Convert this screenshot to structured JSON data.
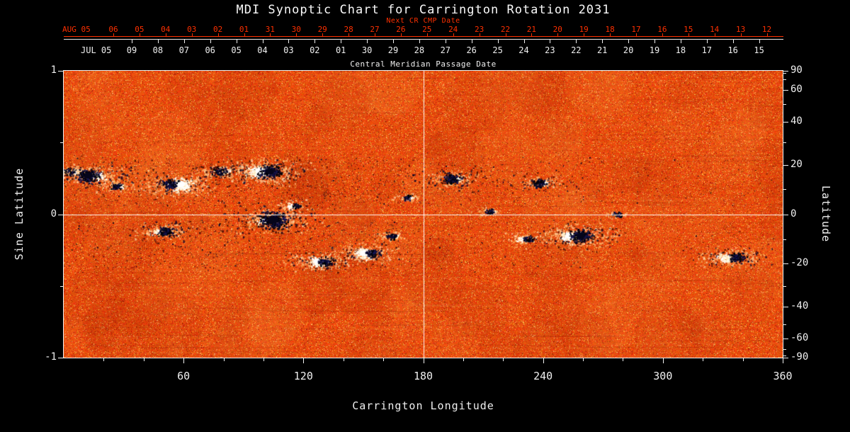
{
  "chart_data": {
    "type": "heatmap",
    "title": "MDI Synoptic Chart for Carrington Rotation 2031",
    "xlabel": "Carrington Longitude",
    "ylabel_left": "Sine Latitude",
    "ylabel_right": "Latitude",
    "xlim": [
      0,
      360
    ],
    "ylim_sine_latitude": [
      -1,
      1
    ],
    "x_major_ticks": [
      60,
      120,
      180,
      240,
      300,
      360
    ],
    "x_minor_step": 20,
    "left_ticks": [
      {
        "v": 1,
        "label": "1"
      },
      {
        "v": 0,
        "label": "0"
      },
      {
        "v": -1,
        "label": "-1"
      }
    ],
    "left_minor_ticks": [
      0.5,
      -0.5
    ],
    "right_major_ticks": [
      90,
      60,
      40,
      20,
      0,
      -20,
      -40,
      -60,
      -90
    ],
    "right_minor_ticks": [
      80,
      70,
      50,
      30,
      10,
      -10,
      -30,
      -50,
      -70,
      -80
    ],
    "grid": {
      "horizontal_at_sine_lat": 0,
      "vertical_at_longitude": 180
    },
    "top_axes": {
      "next_cr_label": "Next CR CMP Date",
      "red_prefix": "AUG 05",
      "red_dates": [
        "06",
        "05",
        "04",
        "03",
        "02",
        "01",
        "31",
        "30",
        "29",
        "28",
        "27",
        "26",
        "25",
        "24",
        "23",
        "22",
        "21",
        "20",
        "19",
        "18",
        "17",
        "16",
        "15",
        "14",
        "13",
        "12"
      ],
      "white_prefix": "JUL 05",
      "white_dates": [
        "09",
        "08",
        "07",
        "06",
        "05",
        "04",
        "03",
        "02",
        "01",
        "30",
        "29",
        "28",
        "27",
        "26",
        "25",
        "24",
        "23",
        "22",
        "21",
        "20",
        "19",
        "18",
        "17",
        "16",
        "15"
      ],
      "axis_title": "Central Meridian Passage Date"
    },
    "colors": {
      "background": "#000000",
      "red_axis": "#ff3000",
      "white_axis": "#f0f0f0",
      "base_orange": "#e85010",
      "bright_speckle": "#ffcf96",
      "dark_spot": "#0a0a30",
      "white_spot": "#ffffff"
    },
    "active_regions": [
      {
        "lon": 4,
        "sine_lat": 0.3,
        "dark": 7,
        "white": 5,
        "ddx": -4,
        "wdx": 5
      },
      {
        "lon": 14,
        "sine_lat": 0.27,
        "dark": 12,
        "white": 7,
        "ddx": -5,
        "wdx": 8
      },
      {
        "lon": 26,
        "sine_lat": 0.2,
        "dark": 6,
        "white": 4,
        "ddx": 0,
        "wdx": 6
      },
      {
        "lon": 50,
        "sine_lat": -0.12,
        "dark": 9,
        "white": 5,
        "ddx": 2,
        "wdx": -9
      },
      {
        "lon": 57,
        "sine_lat": 0.21,
        "dark": 9,
        "white": 12,
        "ddx": -11,
        "wdx": 4
      },
      {
        "lon": 78,
        "sine_lat": 0.3,
        "dark": 8,
        "white": 4,
        "ddx": 0,
        "wdx": 9
      },
      {
        "lon": 100,
        "sine_lat": 0.3,
        "dark": 12,
        "white": 12,
        "ddx": 9,
        "wdx": -5
      },
      {
        "lon": 104,
        "sine_lat": -0.04,
        "dark": 15,
        "white": 6,
        "ddx": 2,
        "wdx": -13
      },
      {
        "lon": 115,
        "sine_lat": 0.06,
        "dark": 5,
        "white": 5,
        "ddx": 4,
        "wdx": -4
      },
      {
        "lon": 128,
        "sine_lat": -0.33,
        "dark": 8,
        "white": 9,
        "ddx": 8,
        "wdx": -3
      },
      {
        "lon": 151,
        "sine_lat": -0.27,
        "dark": 8,
        "white": 10,
        "ddx": 9,
        "wdx": -2
      },
      {
        "lon": 164,
        "sine_lat": -0.15,
        "dark": 6,
        "white": 3,
        "ddx": 0,
        "wdx": 6
      },
      {
        "lon": 172,
        "sine_lat": 0.12,
        "dark": 5,
        "white": 3,
        "ddx": 0,
        "wdx": 4
      },
      {
        "lon": 195,
        "sine_lat": 0.25,
        "dark": 10,
        "white": 4,
        "ddx": -3,
        "wdx": 7
      },
      {
        "lon": 213,
        "sine_lat": 0.02,
        "dark": 5,
        "white": 3,
        "ddx": 0,
        "wdx": 4
      },
      {
        "lon": 238,
        "sine_lat": 0.22,
        "dark": 8,
        "white": 4,
        "ddx": 0,
        "wdx": 7
      },
      {
        "lon": 231,
        "sine_lat": -0.17,
        "dark": 6,
        "white": 5,
        "ddx": 5,
        "wdx": -5
      },
      {
        "lon": 256,
        "sine_lat": -0.15,
        "dark": 12,
        "white": 10,
        "ddx": 8,
        "wdx": -8
      },
      {
        "lon": 277,
        "sine_lat": 0.0,
        "dark": 5,
        "white": 2,
        "ddx": 0,
        "wdx": 3
      },
      {
        "lon": 334,
        "sine_lat": -0.3,
        "dark": 9,
        "white": 8,
        "ddx": 8,
        "wdx": -7
      }
    ]
  }
}
